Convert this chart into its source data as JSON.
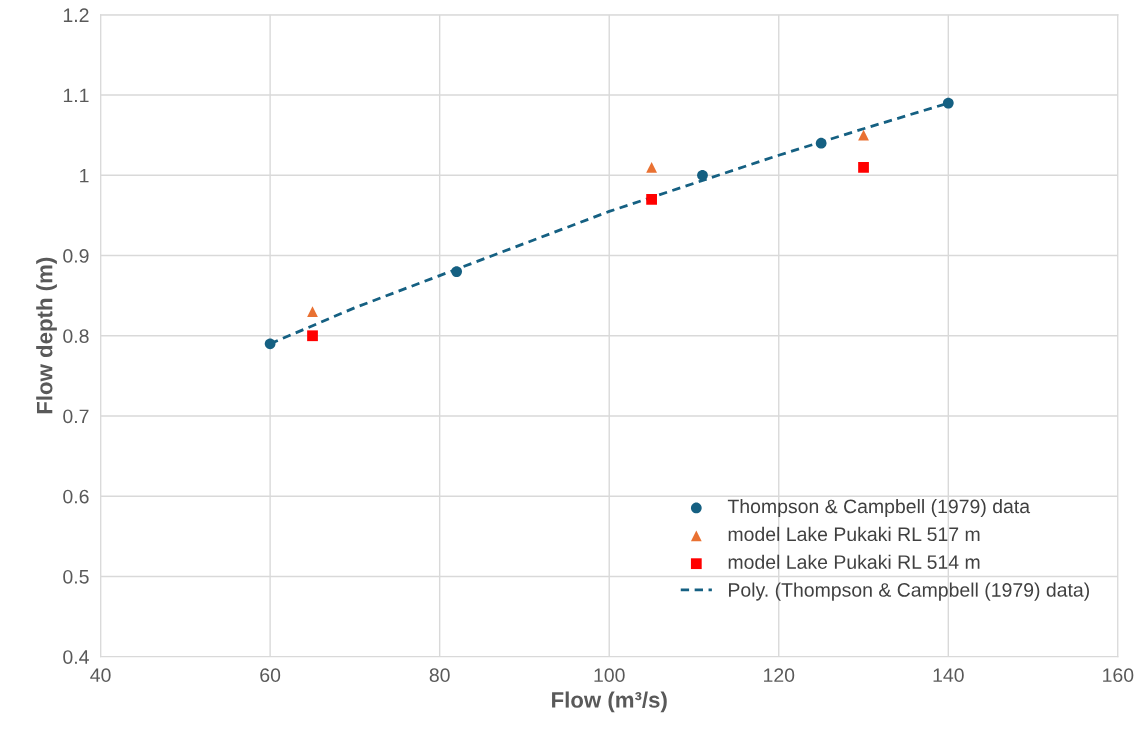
{
  "chart_data": {
    "type": "scatter",
    "xlabel": "Flow (m³/s)",
    "ylabel": "Flow depth (m)",
    "xlim": [
      40,
      160
    ],
    "xticks": [
      40,
      60,
      80,
      100,
      120,
      140,
      160
    ],
    "ylim": [
      0.4,
      1.2
    ],
    "yticks": [
      0.4,
      0.5,
      0.6,
      0.7,
      0.8,
      0.9,
      1,
      1.1,
      1.2
    ],
    "grid": true,
    "legend": "lower right",
    "series": [
      {
        "name": "Thompson & Campbell (1979) data",
        "marker": "circle",
        "color": "#156082",
        "x": [
          60,
          82,
          111,
          125,
          140
        ],
        "values": [
          0.79,
          0.88,
          1.0,
          1.04,
          1.09
        ]
      },
      {
        "name": "model Lake Pukaki RL 517 m",
        "marker": "triangle",
        "color": "#e97132",
        "x": [
          65,
          105,
          130
        ],
        "values": [
          0.83,
          1.01,
          1.05
        ]
      },
      {
        "name": "model Lake Pukaki RL 514 m",
        "marker": "square",
        "color": "#ff0000",
        "x": [
          65,
          105,
          130
        ],
        "values": [
          0.8,
          0.97,
          1.01
        ]
      },
      {
        "name": "Poly. (Thompson & Campbell (1979) data)",
        "type": "line",
        "line_style": "dashed",
        "marker": "none",
        "color": "#156082",
        "x": [
          60,
          70,
          80,
          90,
          100,
          110,
          120,
          130,
          140
        ],
        "values": [
          0.79,
          0.835,
          0.875,
          0.915,
          0.955,
          0.99,
          1.025,
          1.058,
          1.09
        ]
      }
    ]
  }
}
